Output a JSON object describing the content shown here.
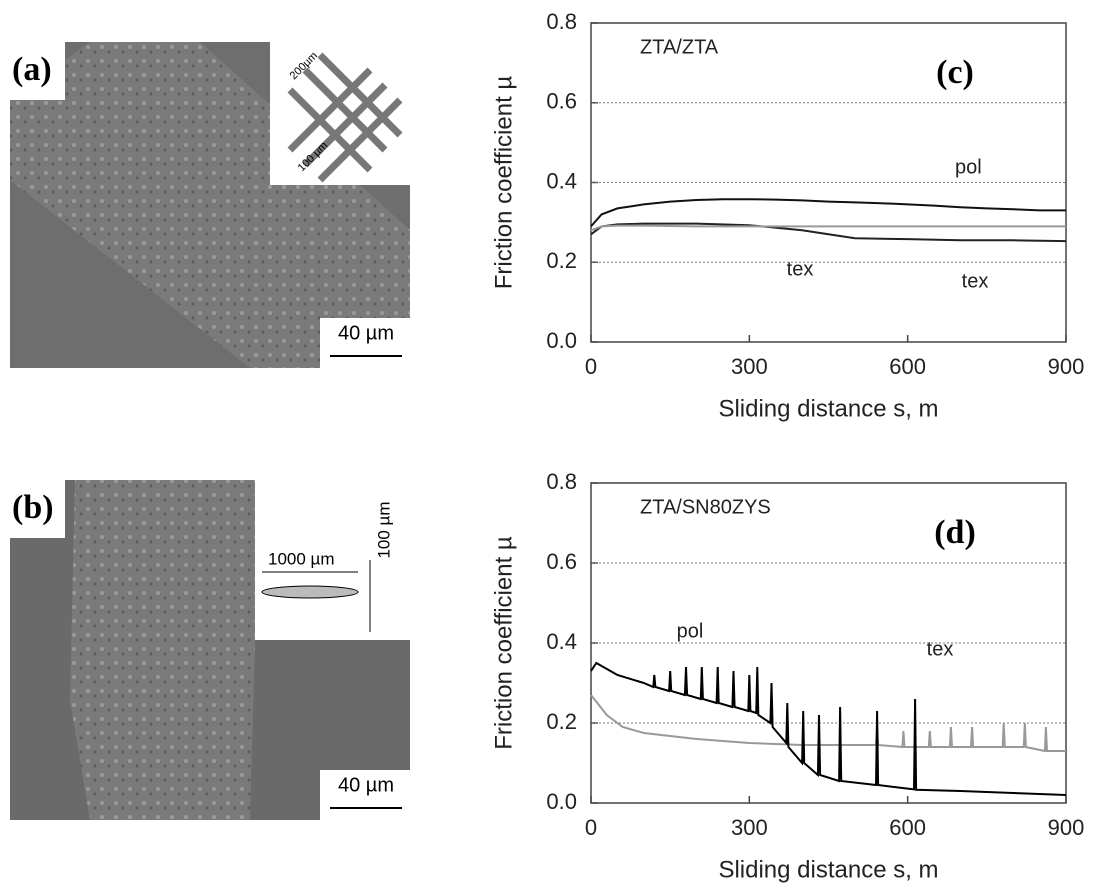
{
  "panels": [
    {
      "label": "(a)",
      "scale_bar": "40 µm",
      "inset_labels": [
        "200µm",
        "100 µm"
      ]
    },
    {
      "label": "(b)",
      "scale_bar": "40 µm",
      "inset_labels": [
        "1000 µm",
        "100 µm"
      ]
    }
  ],
  "chart_data": [
    {
      "type": "line",
      "label": "(c)",
      "annotations": [
        "ZTA/ZTA",
        "pol",
        "tex",
        "tex"
      ],
      "x_label": "Sliding distance s, m",
      "y_label": "Friction coefficient µ",
      "xlim": [
        0,
        900
      ],
      "xticks": [
        0,
        300,
        600,
        900
      ],
      "ylim": [
        0,
        0.8
      ],
      "yticks": [
        {
          "value": 0,
          "label": "0.0"
        },
        {
          "value": 0.2,
          "label": "0.2"
        },
        {
          "value": 0.4,
          "label": "0.4"
        },
        {
          "value": 0.6,
          "label": "0.6"
        },
        {
          "value": 0.8,
          "label": "0.8"
        }
      ],
      "grid": true,
      "series": [
        {
          "color": "#111111",
          "x": [
            0,
            20,
            50,
            100,
            150,
            200,
            250,
            300,
            350,
            400,
            450,
            500,
            550,
            600,
            650,
            700,
            750,
            800,
            850,
            900
          ],
          "values": [
            0.29,
            0.32,
            0.335,
            0.345,
            0.352,
            0.356,
            0.358,
            0.358,
            0.357,
            0.355,
            0.352,
            0.35,
            0.348,
            0.345,
            0.342,
            0.338,
            0.335,
            0.333,
            0.33,
            0.33
          ]
        },
        {
          "color": "#222222",
          "x": [
            0,
            20,
            50,
            100,
            200,
            300,
            400,
            450,
            500,
            600,
            700,
            800,
            900
          ],
          "values": [
            0.27,
            0.29,
            0.295,
            0.297,
            0.297,
            0.293,
            0.28,
            0.27,
            0.26,
            0.258,
            0.255,
            0.255,
            0.253
          ]
        },
        {
          "color": "#999999",
          "x": [
            0,
            20,
            50,
            100,
            200,
            300,
            400,
            500,
            600,
            700,
            800,
            900
          ],
          "values": [
            0.28,
            0.29,
            0.292,
            0.292,
            0.29,
            0.29,
            0.29,
            0.29,
            0.29,
            0.29,
            0.29,
            0.29
          ]
        }
      ]
    },
    {
      "type": "line",
      "label": "(d)",
      "annotations": [
        "ZTA/SN80ZYS",
        "pol",
        "tex"
      ],
      "x_label": "Sliding distance s, m",
      "y_label": "Friction coefficient µ",
      "xlim": [
        0,
        900
      ],
      "xticks": [
        0,
        300,
        600,
        900
      ],
      "ylim": [
        0,
        0.8
      ],
      "yticks": [
        {
          "value": 0,
          "label": "0.0"
        },
        {
          "value": 0.2,
          "label": "0.2"
        },
        {
          "value": 0.4,
          "label": "0.4"
        },
        {
          "value": 0.6,
          "label": "0.6"
        },
        {
          "value": 0.8,
          "label": "0.8"
        }
      ],
      "grid": true,
      "series": [
        {
          "color": "#999999",
          "x": [
            0,
            30,
            60,
            100,
            200,
            300,
            400,
            500,
            540,
            542,
            544,
            590,
            592,
            594,
            640,
            642,
            644,
            680,
            682,
            684,
            720,
            722,
            724,
            780,
            782,
            784,
            820,
            822,
            824,
            860,
            862,
            864,
            900
          ],
          "values": [
            0.27,
            0.22,
            0.19,
            0.175,
            0.16,
            0.15,
            0.145,
            0.145,
            0.145,
            0.19,
            0.145,
            0.14,
            0.18,
            0.14,
            0.14,
            0.18,
            0.14,
            0.14,
            0.19,
            0.14,
            0.14,
            0.19,
            0.14,
            0.14,
            0.2,
            0.14,
            0.14,
            0.2,
            0.14,
            0.13,
            0.19,
            0.13,
            0.13
          ]
        },
        {
          "color": "#000000",
          "x": [
            0,
            10,
            50,
            100,
            118,
            120,
            122,
            148,
            150,
            152,
            178,
            180,
            182,
            208,
            210,
            212,
            238,
            240,
            242,
            268,
            270,
            272,
            298,
            300,
            302,
            313,
            315,
            317,
            340,
            342,
            344,
            370,
            372,
            374,
            400,
            402,
            404,
            430,
            432,
            434,
            470,
            472,
            474,
            540,
            542,
            544,
            612,
            614,
            616,
            700,
            800,
            900
          ],
          "values": [
            0.33,
            0.35,
            0.32,
            0.3,
            0.29,
            0.32,
            0.29,
            0.28,
            0.33,
            0.28,
            0.27,
            0.34,
            0.27,
            0.26,
            0.34,
            0.26,
            0.25,
            0.34,
            0.25,
            0.24,
            0.33,
            0.24,
            0.23,
            0.32,
            0.23,
            0.225,
            0.34,
            0.22,
            0.2,
            0.3,
            0.19,
            0.15,
            0.25,
            0.14,
            0.1,
            0.23,
            0.1,
            0.07,
            0.22,
            0.07,
            0.055,
            0.24,
            0.055,
            0.045,
            0.23,
            0.045,
            0.034,
            0.26,
            0.033,
            0.03,
            0.025,
            0.02
          ]
        }
      ]
    }
  ]
}
